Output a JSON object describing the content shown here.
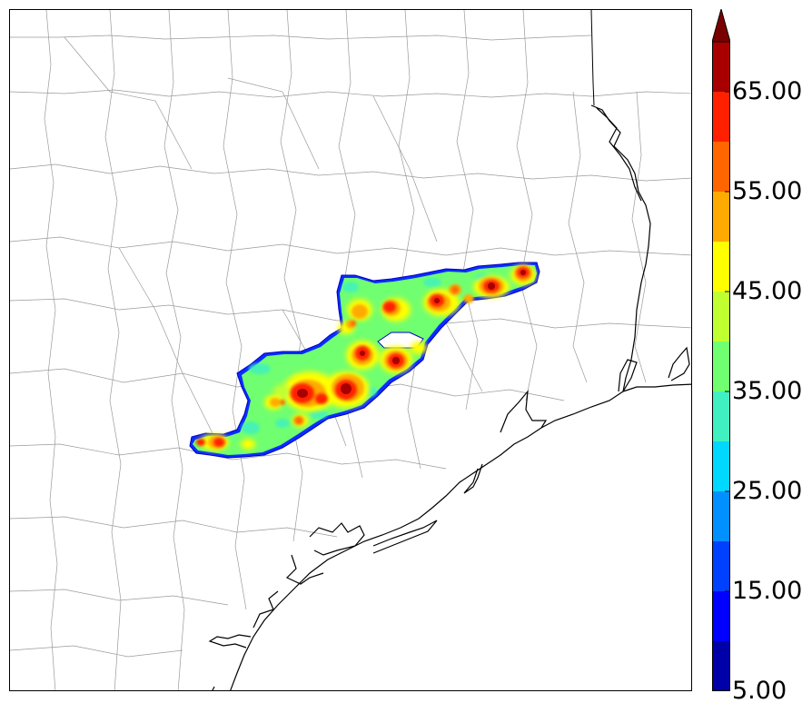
{
  "map": {
    "description_free": true,
    "county_line_color": "#9a9a9a",
    "coast_line_color": "#000000"
  },
  "colorbar": {
    "levels": [
      5,
      10,
      15,
      20,
      25,
      30,
      35,
      40,
      45,
      50,
      55,
      60,
      65,
      70
    ],
    "colors": [
      "#0000a8",
      "#0000ff",
      "#0040ff",
      "#0090ff",
      "#00d8ff",
      "#40f0c0",
      "#70ff70",
      "#c0ff30",
      "#ffff00",
      "#ffaa00",
      "#ff6600",
      "#ff2000",
      "#a80000"
    ],
    "extend_color": "#7a0000",
    "tick_labels": [
      "5.00",
      "15.00",
      "25.00",
      "35.00",
      "45.00",
      "55.00",
      "65.00"
    ]
  }
}
